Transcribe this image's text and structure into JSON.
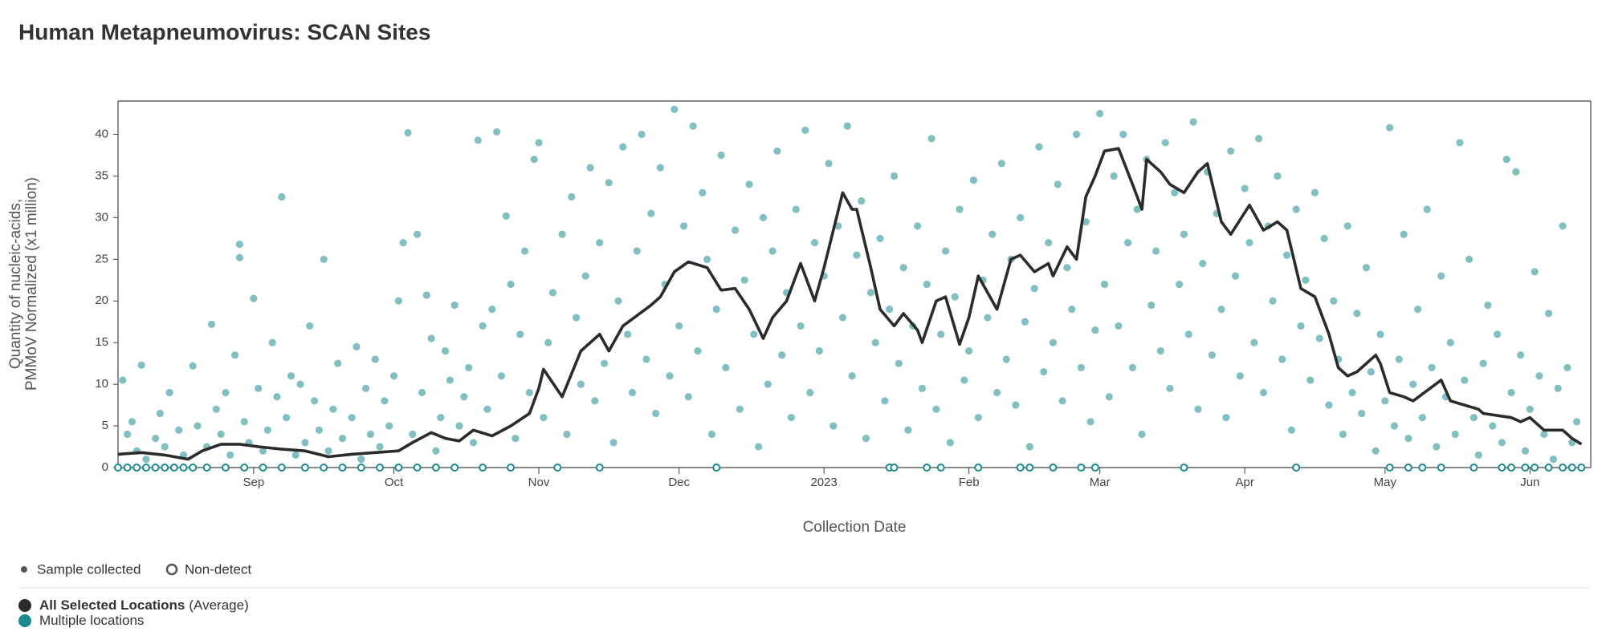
{
  "chart_data": {
    "type": "scatter",
    "title": "Human Metapneumovirus: SCAN Sites",
    "x_label": "Collection Date",
    "y_label": [
      "Quantity of nucleic-acids,",
      "PMMoV Normalized (x1 million)"
    ],
    "xlim": [
      0,
      315
    ],
    "xticks": [
      {
        "value": 29,
        "label": "Sep"
      },
      {
        "value": 59,
        "label": "Oct"
      },
      {
        "value": 90,
        "label": "Nov"
      },
      {
        "value": 120,
        "label": "Dec"
      },
      {
        "value": 151,
        "label": "2023"
      },
      {
        "value": 182,
        "label": "Feb"
      },
      {
        "value": 210,
        "label": "Mar"
      },
      {
        "value": 241,
        "label": "Apr"
      },
      {
        "value": 271,
        "label": "May"
      },
      {
        "value": 302,
        "label": "Jun"
      }
    ],
    "ylim": [
      0,
      44
    ],
    "yticks": [
      0,
      5,
      10,
      15,
      20,
      25,
      30,
      35,
      40
    ],
    "marker_legend": [
      "Sample collected",
      "Non-detect"
    ],
    "series": [
      {
        "name": "All Selected Locations",
        "name_note": "(Average)",
        "type": "line",
        "color": "#2b2b2b",
        "x": [
          0,
          5,
          10,
          15,
          18,
          22,
          26,
          30,
          35,
          40,
          45,
          50,
          55,
          60,
          63,
          67,
          70,
          73,
          76,
          80,
          84,
          88,
          90,
          91,
          95,
          99,
          103,
          105,
          108,
          114,
          116,
          119,
          122,
          126,
          129,
          132,
          135,
          138,
          140,
          143,
          146,
          149,
          151,
          155,
          157,
          158,
          161,
          163,
          166,
          168,
          171,
          172,
          175,
          177,
          180,
          182,
          184,
          188,
          191,
          193,
          196,
          199,
          200,
          203,
          205,
          207,
          209,
          211,
          214,
          217,
          219,
          220,
          223,
          225,
          228,
          231,
          233,
          236,
          238,
          242,
          245,
          248,
          250,
          253,
          256,
          259,
          261,
          263,
          265,
          269,
          270,
          272,
          275,
          277,
          283,
          285,
          291,
          292,
          298,
          300,
          302,
          305,
          309,
          311,
          313
        ],
        "values": [
          1.6,
          1.8,
          1.5,
          1.0,
          2.0,
          2.8,
          2.8,
          2.5,
          2.2,
          2.0,
          1.3,
          1.6,
          1.8,
          2.0,
          3.0,
          4.2,
          3.5,
          3.2,
          4.5,
          3.8,
          5.0,
          6.5,
          9.5,
          11.8,
          8.5,
          14,
          16,
          14,
          17,
          19.5,
          20.5,
          23.5,
          24.7,
          24,
          21.3,
          21.5,
          19,
          15.5,
          18,
          20,
          24.5,
          20,
          24,
          33,
          31,
          31,
          24,
          19,
          17,
          18.5,
          16.5,
          15,
          20,
          20.5,
          14.8,
          18,
          23,
          19,
          25,
          25.5,
          23.5,
          24.5,
          23,
          26.5,
          25,
          32.5,
          35,
          38,
          38.3,
          34,
          31,
          37,
          35.5,
          34,
          33,
          35.5,
          36.5,
          29.5,
          28,
          31.5,
          28.5,
          29.5,
          28.5,
          21.5,
          20.5,
          16,
          12,
          11,
          11.5,
          13.5,
          12.5,
          9,
          8.5,
          8,
          10.5,
          8,
          7,
          6.5,
          6,
          5.5,
          6,
          4.5,
          4.5,
          3.5,
          2.8
        ]
      },
      {
        "name": "Multiple locations",
        "type": "scatter",
        "color": "#1a8a8f",
        "x": [
          1,
          2,
          3,
          4,
          5,
          6,
          8,
          9,
          10,
          11,
          13,
          14,
          16,
          17,
          19,
          20,
          21,
          22,
          23,
          24,
          25,
          26,
          26,
          27,
          28,
          29,
          30,
          31,
          32,
          33,
          34,
          35,
          36,
          37,
          38,
          39,
          40,
          41,
          42,
          43,
          44,
          45,
          46,
          47,
          48,
          50,
          51,
          52,
          53,
          54,
          55,
          56,
          57,
          58,
          59,
          60,
          61,
          62,
          63,
          64,
          65,
          66,
          67,
          68,
          69,
          70,
          71,
          72,
          73,
          74,
          75,
          76,
          77,
          78,
          79,
          80,
          81,
          82,
          83,
          84,
          85,
          86,
          87,
          88,
          89,
          90,
          91,
          92,
          93,
          95,
          96,
          97,
          98,
          99,
          100,
          101,
          102,
          103,
          104,
          105,
          106,
          107,
          108,
          109,
          110,
          111,
          112,
          113,
          114,
          115,
          116,
          117,
          118,
          119,
          120,
          121,
          122,
          123,
          124,
          125,
          126,
          127,
          128,
          129,
          130,
          132,
          133,
          134,
          135,
          136,
          137,
          138,
          139,
          140,
          141,
          142,
          143,
          144,
          145,
          146,
          147,
          148,
          149,
          150,
          151,
          152,
          153,
          154,
          155,
          156,
          157,
          158,
          159,
          160,
          161,
          162,
          163,
          164,
          165,
          166,
          167,
          168,
          169,
          170,
          171,
          172,
          173,
          174,
          175,
          176,
          177,
          178,
          179,
          180,
          181,
          182,
          183,
          184,
          185,
          186,
          187,
          188,
          189,
          190,
          191,
          192,
          193,
          194,
          195,
          196,
          197,
          198,
          199,
          200,
          201,
          202,
          203,
          204,
          205,
          206,
          207,
          208,
          209,
          210,
          211,
          212,
          213,
          214,
          215,
          216,
          217,
          218,
          219,
          220,
          221,
          222,
          223,
          224,
          225,
          226,
          227,
          228,
          229,
          230,
          231,
          232,
          233,
          234,
          235,
          236,
          237,
          238,
          239,
          240,
          241,
          242,
          243,
          244,
          245,
          246,
          247,
          248,
          249,
          250,
          251,
          252,
          253,
          254,
          255,
          256,
          257,
          258,
          259,
          260,
          261,
          262,
          263,
          264,
          265,
          266,
          267,
          268,
          269,
          270,
          271,
          272,
          273,
          274,
          275,
          276,
          277,
          278,
          279,
          280,
          281,
          282,
          283,
          284,
          285,
          286,
          287,
          288,
          289,
          290,
          291,
          292,
          293,
          294,
          295,
          296,
          297,
          298,
          299,
          300,
          301,
          302,
          303,
          304,
          305,
          306,
          307,
          308,
          309,
          310,
          311,
          312
        ],
        "values": [
          10.5,
          4,
          5.5,
          2,
          12.3,
          1,
          3.5,
          6.5,
          2.5,
          9,
          4.5,
          1.5,
          12.2,
          5,
          2.5,
          17.2,
          7,
          4,
          9,
          1.5,
          13.5,
          26.8,
          25.2,
          5.5,
          3,
          20.3,
          9.5,
          2,
          4.5,
          15,
          8.5,
          32.5,
          6,
          11,
          1.5,
          10,
          3,
          17,
          8,
          4.5,
          25,
          2,
          7,
          12.5,
          3.5,
          6,
          14.5,
          1,
          9.5,
          4,
          13,
          2.5,
          8,
          5,
          11,
          20,
          27,
          40.2,
          4,
          28,
          9,
          20.7,
          15.5,
          2,
          6,
          14,
          10.5,
          19.5,
          5,
          8.5,
          12,
          3,
          39.3,
          17,
          7,
          19,
          40.3,
          11,
          30.2,
          22,
          3.5,
          16,
          26,
          9,
          37,
          39,
          6,
          15,
          21,
          28,
          4,
          32.5,
          18,
          10,
          23,
          36,
          8,
          27,
          12.5,
          34.2,
          3,
          20,
          38.5,
          16,
          9,
          26,
          40,
          13,
          30.5,
          6.5,
          36,
          22,
          11,
          43,
          17,
          29,
          8.5,
          41,
          14,
          33,
          25,
          4,
          19,
          37.5,
          12,
          28.5,
          7,
          22.5,
          34,
          16,
          2.5,
          30,
          10,
          26,
          38,
          13.5,
          21,
          6,
          31,
          17,
          40.5,
          9,
          27,
          14,
          23,
          36.5,
          5,
          29,
          18,
          41,
          11,
          25.5,
          32,
          3.5,
          21,
          15,
          27.5,
          8,
          19,
          35,
          12.5,
          24,
          4.5,
          17,
          29,
          9.5,
          22,
          39.5,
          7,
          16,
          26,
          3,
          20.5,
          31,
          10.5,
          14,
          34.5,
          6,
          22.5,
          18,
          28,
          9,
          36.5,
          13,
          25,
          7.5,
          30,
          17.5,
          2.5,
          21.5,
          38.5,
          11.5,
          27,
          15,
          34,
          8,
          24,
          19,
          40,
          12,
          29.5,
          5.5,
          16.5,
          42.5,
          22,
          8.5,
          35,
          17,
          40,
          27,
          12,
          31,
          4,
          37,
          19.5,
          26,
          14,
          39,
          9.5,
          33,
          22,
          28,
          16,
          41.5,
          7,
          24.5,
          35.5,
          13.5,
          30.5,
          19,
          6,
          38,
          23,
          11,
          33.5,
          27,
          15,
          39.5,
          9,
          29,
          20,
          35,
          13,
          25.5,
          4.5,
          31,
          17,
          22.5,
          10.5,
          33,
          15.5,
          27.5,
          7.5,
          20,
          13,
          4,
          29,
          9,
          18.5,
          6.5,
          24,
          11.5,
          2,
          16,
          8,
          40.8,
          5,
          13,
          28,
          3.5,
          10,
          19,
          6,
          31,
          12,
          2.5,
          23,
          8.5,
          15,
          4,
          39,
          10.5,
          25,
          6,
          1.5,
          12.5,
          19.5,
          5,
          16,
          3,
          37,
          9,
          35.5,
          13.5,
          2,
          7,
          23.5,
          11,
          4,
          18.5,
          1,
          9.5,
          29,
          12,
          3,
          5.5
        ]
      }
    ],
    "non_detect": {
      "color": "#1a8a8f",
      "x": [
        0,
        2,
        4,
        6,
        8,
        10,
        12,
        14,
        16,
        19,
        23,
        27,
        31,
        35,
        40,
        44,
        48,
        52,
        56,
        60,
        64,
        68,
        72,
        78,
        84,
        94,
        103,
        128,
        165,
        166,
        173,
        176,
        184,
        193,
        195,
        200,
        206,
        209,
        228,
        252,
        272,
        276,
        279,
        283,
        290,
        296,
        298,
        301,
        303,
        306,
        309,
        311,
        313
      ],
      "values": [
        0,
        0,
        0,
        0,
        0,
        0,
        0,
        0,
        0,
        0,
        0,
        0,
        0,
        0,
        0,
        0,
        0,
        0,
        0,
        0,
        0,
        0,
        0,
        0,
        0,
        0,
        0,
        0,
        0,
        0,
        0,
        0,
        0,
        0,
        0,
        0,
        0,
        0,
        0,
        0,
        0,
        0,
        0,
        0,
        0,
        0,
        0,
        0,
        0,
        0,
        0,
        0,
        0
      ]
    }
  }
}
